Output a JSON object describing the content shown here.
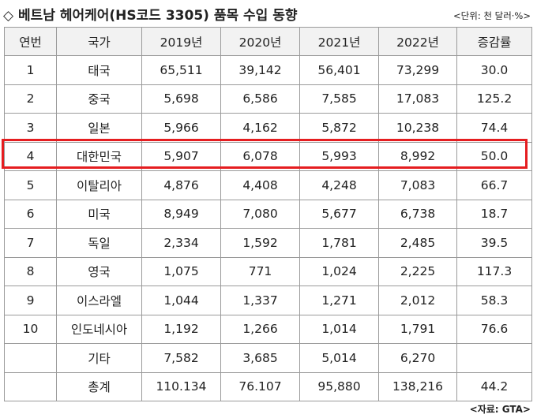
{
  "title": "◇ 베트남 헤어케어(HS코드 3305) 품목 수입 동향",
  "unit": "<단위: 천 달러·%>",
  "source": "<자료: GTA>",
  "headers": [
    "연번",
    "국가",
    "2019년",
    "2020년",
    "2021년",
    "2022년",
    "증감률"
  ],
  "rows": [
    [
      "1",
      "태국",
      "65,511",
      "39,142",
      "56,401",
      "73,299",
      "30.0"
    ],
    [
      "2",
      "중국",
      "5,698",
      "6,586",
      "7,585",
      "17,083",
      "125.2"
    ],
    [
      "3",
      "일본",
      "5,966",
      "4,162",
      "5,872",
      "10,238",
      "74.4"
    ],
    [
      "4",
      "대한민국",
      "5,907",
      "6,078",
      "5,993",
      "8,992",
      "50.0"
    ],
    [
      "5",
      "이탈리아",
      "4,876",
      "4,408",
      "4,248",
      "7,083",
      "66.7"
    ],
    [
      "6",
      "미국",
      "8,949",
      "7,080",
      "5,677",
      "6,738",
      "18.7"
    ],
    [
      "7",
      "독일",
      "2,334",
      "1,592",
      "1,781",
      "2,485",
      "39.5"
    ],
    [
      "8",
      "영국",
      "1,075",
      "771",
      "1,024",
      "2,225",
      "117.3"
    ],
    [
      "9",
      "이스라엘",
      "1,044",
      "1,337",
      "1,271",
      "2,012",
      "58.3"
    ],
    [
      "10",
      "인도네시아",
      "1,192",
      "1,266",
      "1,014",
      "1,791",
      "76.6"
    ],
    [
      "",
      "기타",
      "7,582",
      "3,685",
      "5,014",
      "6,270",
      ""
    ],
    [
      "",
      "총계",
      "110.134",
      "76.107",
      "95,880",
      "138,216",
      "44.2"
    ]
  ],
  "highlight_color": "#e51d20"
}
